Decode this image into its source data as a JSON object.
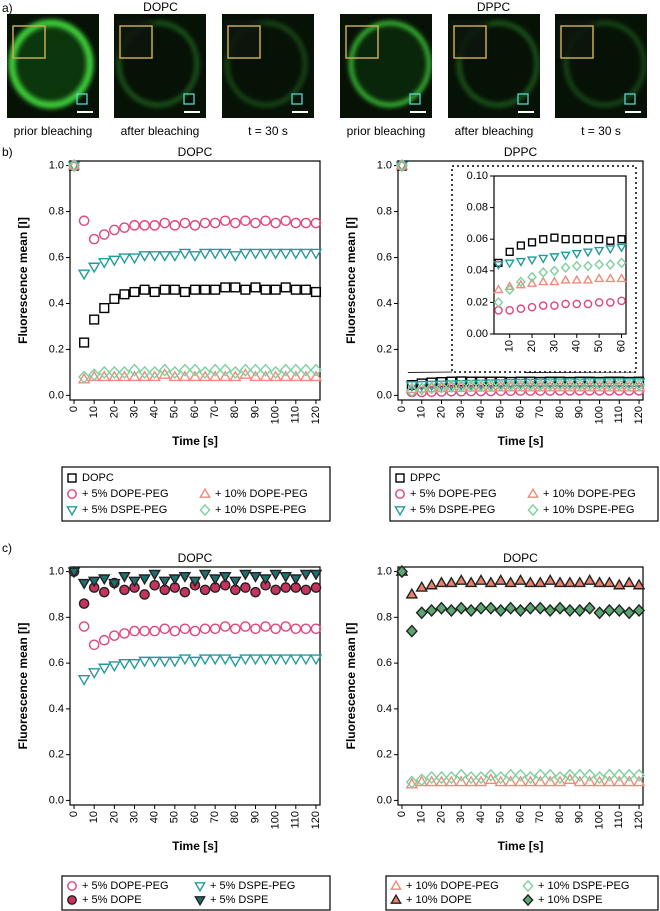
{
  "panel_labels": [
    "a)",
    "b)",
    "c)"
  ],
  "panel_a": [
    {
      "title": "DOPC",
      "captions": [
        "prior bleaching",
        "after bleaching",
        "t = 30 s"
      ]
    },
    {
      "title": "DPPC",
      "captions": [
        "prior bleaching",
        "after bleaching",
        "t = 30 s"
      ]
    }
  ],
  "chart_data": [
    {
      "type": "scatter",
      "title": "DOPC",
      "xlabel": "Time [s]",
      "ylabel": "Fluorescence mean [I]",
      "x": [
        0,
        5,
        10,
        15,
        20,
        25,
        30,
        35,
        40,
        45,
        50,
        55,
        60,
        65,
        70,
        75,
        80,
        85,
        90,
        95,
        100,
        105,
        110,
        115,
        120
      ],
      "xlim": [
        -2,
        122
      ],
      "xticks": [
        0,
        10,
        20,
        30,
        40,
        50,
        60,
        70,
        80,
        90,
        100,
        110,
        120
      ],
      "ylim": [
        -0.02,
        1.02
      ],
      "yticks": [
        {
          "value": 0,
          "label": "0.0"
        },
        0.2,
        0.4,
        0.6,
        0.8,
        {
          "value": 1,
          "label": "1.0"
        }
      ],
      "series": [
        {
          "name": "DOPC",
          "color": "#000000",
          "marker": "square",
          "filled": false,
          "values": [
            1.0,
            0.23,
            0.33,
            0.38,
            0.42,
            0.44,
            0.45,
            0.46,
            0.45,
            0.46,
            0.46,
            0.45,
            0.46,
            0.46,
            0.46,
            0.47,
            0.47,
            0.46,
            0.47,
            0.46,
            0.46,
            0.47,
            0.46,
            0.46,
            0.45
          ]
        },
        {
          "name": "+ 5% DOPE-PEG",
          "color": "#e0457b",
          "marker": "circle",
          "filled": false,
          "values": [
            1.0,
            0.76,
            0.68,
            0.7,
            0.72,
            0.73,
            0.74,
            0.74,
            0.74,
            0.75,
            0.74,
            0.75,
            0.74,
            0.75,
            0.75,
            0.76,
            0.75,
            0.76,
            0.75,
            0.76,
            0.75,
            0.76,
            0.75,
            0.75,
            0.75
          ]
        },
        {
          "name": "+ 5% DSPE-PEG",
          "color": "#239b9b",
          "marker": "triangle-down",
          "filled": false,
          "values": [
            1.0,
            0.53,
            0.56,
            0.58,
            0.59,
            0.6,
            0.6,
            0.61,
            0.61,
            0.61,
            0.61,
            0.62,
            0.61,
            0.62,
            0.62,
            0.62,
            0.61,
            0.62,
            0.62,
            0.62,
            0.62,
            0.62,
            0.62,
            0.62,
            0.62
          ]
        },
        {
          "name": "+ 10% DOPE-PEG",
          "color": "#f08a7a",
          "marker": "triangle-up",
          "filled": false,
          "values": [
            1.0,
            0.07,
            0.08,
            0.08,
            0.08,
            0.08,
            0.08,
            0.08,
            0.08,
            0.09,
            0.08,
            0.08,
            0.08,
            0.08,
            0.08,
            0.08,
            0.08,
            0.09,
            0.08,
            0.08,
            0.08,
            0.08,
            0.08,
            0.08,
            0.08
          ]
        },
        {
          "name": "+ 10% DSPE-PEG",
          "color": "#7fcf9f",
          "marker": "diamond",
          "filled": false,
          "values": [
            1.0,
            0.08,
            0.09,
            0.1,
            0.1,
            0.1,
            0.11,
            0.1,
            0.1,
            0.11,
            0.1,
            0.11,
            0.11,
            0.1,
            0.11,
            0.11,
            0.1,
            0.11,
            0.11,
            0.11,
            0.1,
            0.11,
            0.11,
            0.11,
            0.11
          ]
        }
      ]
    },
    {
      "type": "scatter",
      "title": "DPPC",
      "xlabel": "Time [s]",
      "ylabel": "Fluorescence mean [I]",
      "x": [
        0,
        5,
        10,
        15,
        20,
        25,
        30,
        35,
        40,
        45,
        50,
        55,
        60,
        65,
        70,
        75,
        80,
        85,
        90,
        95,
        100,
        105,
        110,
        115,
        120
      ],
      "xlim": [
        -2,
        122
      ],
      "xticks": [
        0,
        10,
        20,
        30,
        40,
        50,
        60,
        70,
        80,
        90,
        100,
        110,
        120
      ],
      "ylim": [
        -0.02,
        1.02
      ],
      "yticks": [
        {
          "value": 0,
          "label": "0.0"
        },
        0.2,
        0.4,
        0.6,
        0.8,
        {
          "value": 1,
          "label": "1.0"
        }
      ],
      "inset": {
        "xlim": [
          3,
          62
        ],
        "xticks": [
          10,
          20,
          30,
          40,
          50,
          60
        ],
        "ylim": [
          0,
          0.1
        ],
        "yticks": [
          {
            "value": 0,
            "label": "0.00"
          },
          {
            "value": 0.02,
            "label": "0.02"
          },
          {
            "value": 0.04,
            "label": "0.04"
          },
          {
            "value": 0.06,
            "label": "0.06"
          },
          {
            "value": 0.08,
            "label": "0.08"
          },
          {
            "value": 0.1,
            "label": "0.10"
          }
        ]
      },
      "series": [
        {
          "name": "DPPC",
          "color": "#000000",
          "marker": "square",
          "filled": false,
          "values": [
            1.0,
            0.045,
            0.052,
            0.056,
            0.058,
            0.06,
            0.061,
            0.06,
            0.06,
            0.06,
            0.06,
            0.059,
            0.06,
            0.06,
            0.059,
            0.06,
            0.06,
            0.059,
            0.06,
            0.06,
            0.059,
            0.06,
            0.06,
            0.059,
            0.06
          ]
        },
        {
          "name": "+ 5% DOPE-PEG",
          "color": "#e0457b",
          "marker": "circle",
          "filled": false,
          "values": [
            1.0,
            0.015,
            0.015,
            0.016,
            0.017,
            0.018,
            0.018,
            0.019,
            0.019,
            0.019,
            0.02,
            0.02,
            0.021,
            0.021,
            0.021,
            0.021,
            0.022,
            0.022,
            0.022,
            0.022,
            0.022,
            0.022,
            0.022,
            0.022,
            0.022
          ]
        },
        {
          "name": "+ 5% DSPE-PEG",
          "color": "#239b9b",
          "marker": "triangle-down",
          "filled": false,
          "values": [
            1.0,
            0.044,
            0.045,
            0.046,
            0.047,
            0.048,
            0.049,
            0.05,
            0.051,
            0.052,
            0.053,
            0.054,
            0.055,
            0.055,
            0.055,
            0.056,
            0.056,
            0.056,
            0.056,
            0.057,
            0.057,
            0.057,
            0.057,
            0.057,
            0.057
          ]
        },
        {
          "name": "+ 10% DOPE-PEG",
          "color": "#f08a7a",
          "marker": "triangle-up",
          "filled": false,
          "values": [
            1.0,
            0.028,
            0.03,
            0.031,
            0.032,
            0.033,
            0.033,
            0.034,
            0.034,
            0.034,
            0.035,
            0.035,
            0.035,
            0.035,
            0.035,
            0.035,
            0.035,
            0.035,
            0.035,
            0.035,
            0.035,
            0.035,
            0.035,
            0.035,
            0.035
          ]
        },
        {
          "name": "+ 10% DSPE-PEG",
          "color": "#7fcf9f",
          "marker": "diamond",
          "filled": false,
          "values": [
            1.0,
            0.02,
            0.028,
            0.033,
            0.036,
            0.039,
            0.04,
            0.042,
            0.043,
            0.043,
            0.044,
            0.044,
            0.045,
            0.045,
            0.045,
            0.046,
            0.046,
            0.046,
            0.046,
            0.046,
            0.046,
            0.046,
            0.046,
            0.046,
            0.046
          ]
        }
      ]
    },
    {
      "type": "scatter",
      "title": "DOPC",
      "xlabel": "Time [s]",
      "ylabel": "Fluorescence mean [I]",
      "x": [
        0,
        5,
        10,
        15,
        20,
        25,
        30,
        35,
        40,
        45,
        50,
        55,
        60,
        65,
        70,
        75,
        80,
        85,
        90,
        95,
        100,
        105,
        110,
        115,
        120
      ],
      "xlim": [
        -2,
        122
      ],
      "xticks": [
        0,
        10,
        20,
        30,
        40,
        50,
        60,
        70,
        80,
        90,
        100,
        110,
        120
      ],
      "ylim": [
        -0.02,
        1.02
      ],
      "yticks": [
        {
          "value": 0,
          "label": "0.0"
        },
        0.2,
        0.4,
        0.6,
        0.8,
        {
          "value": 1,
          "label": "1.0"
        }
      ],
      "series": [
        {
          "name": "+ 5% DOPE-PEG",
          "color": "#e0457b",
          "marker": "circle",
          "filled": false,
          "values": [
            1.0,
            0.76,
            0.68,
            0.7,
            0.72,
            0.73,
            0.74,
            0.74,
            0.74,
            0.75,
            0.74,
            0.75,
            0.74,
            0.75,
            0.75,
            0.76,
            0.75,
            0.76,
            0.75,
            0.76,
            0.75,
            0.76,
            0.75,
            0.75,
            0.75
          ]
        },
        {
          "name": "+ 5% DOPE",
          "color": "#c8335e",
          "edgecolor": "#222222",
          "marker": "circle",
          "filled": true,
          "values": [
            1.0,
            0.86,
            0.93,
            0.91,
            0.95,
            0.92,
            0.93,
            0.9,
            0.94,
            0.92,
            0.93,
            0.91,
            0.94,
            0.92,
            0.93,
            0.94,
            0.92,
            0.93,
            0.91,
            0.94,
            0.92,
            0.93,
            0.93,
            0.92,
            0.93
          ]
        },
        {
          "name": "+ 5% DSPE-PEG",
          "color": "#239b9b",
          "marker": "triangle-down",
          "filled": false,
          "values": [
            1.0,
            0.53,
            0.56,
            0.58,
            0.59,
            0.6,
            0.6,
            0.61,
            0.61,
            0.61,
            0.61,
            0.62,
            0.61,
            0.62,
            0.62,
            0.62,
            0.61,
            0.62,
            0.62,
            0.62,
            0.62,
            0.62,
            0.62,
            0.62,
            0.62
          ]
        },
        {
          "name": "+ 5% DSPE",
          "color": "#1f6f6f",
          "edgecolor": "#222222",
          "marker": "triangle-down",
          "filled": true,
          "values": [
            1.0,
            0.95,
            0.96,
            0.97,
            0.95,
            0.98,
            0.96,
            0.97,
            0.99,
            0.96,
            0.97,
            0.98,
            0.96,
            0.99,
            0.97,
            0.98,
            0.96,
            0.99,
            0.98,
            0.97,
            0.99,
            0.98,
            0.97,
            0.99,
            0.99
          ]
        }
      ]
    },
    {
      "type": "scatter",
      "title": "DOPC",
      "xlabel": "Time [s]",
      "ylabel": "Fluorescence mean [I]",
      "x": [
        0,
        5,
        10,
        15,
        20,
        25,
        30,
        35,
        40,
        45,
        50,
        55,
        60,
        65,
        70,
        75,
        80,
        85,
        90,
        95,
        100,
        105,
        110,
        115,
        120
      ],
      "xlim": [
        -2,
        122
      ],
      "xticks": [
        0,
        10,
        20,
        30,
        40,
        50,
        60,
        70,
        80,
        90,
        100,
        110,
        120
      ],
      "ylim": [
        -0.02,
        1.02
      ],
      "yticks": [
        {
          "value": 0,
          "label": "0.0"
        },
        0.2,
        0.4,
        0.6,
        0.8,
        {
          "value": 1,
          "label": "1.0"
        }
      ],
      "series": [
        {
          "name": "+ 10% DOPE-PEG",
          "color": "#f08a7a",
          "marker": "triangle-up",
          "filled": false,
          "values": [
            1.0,
            0.07,
            0.08,
            0.08,
            0.08,
            0.08,
            0.08,
            0.08,
            0.08,
            0.09,
            0.08,
            0.08,
            0.08,
            0.08,
            0.08,
            0.08,
            0.08,
            0.09,
            0.08,
            0.08,
            0.08,
            0.08,
            0.08,
            0.08,
            0.08
          ]
        },
        {
          "name": "+ 10% DOPE",
          "color": "#e8806a",
          "edgecolor": "#222222",
          "marker": "triangle-up",
          "filled": true,
          "values": [
            1.0,
            0.9,
            0.93,
            0.94,
            0.95,
            0.95,
            0.96,
            0.95,
            0.96,
            0.95,
            0.96,
            0.95,
            0.96,
            0.95,
            0.95,
            0.96,
            0.95,
            0.95,
            0.95,
            0.96,
            0.95,
            0.95,
            0.94,
            0.95,
            0.94
          ]
        },
        {
          "name": "+ 10% DSPE-PEG",
          "color": "#7fcf9f",
          "marker": "diamond",
          "filled": false,
          "values": [
            1.0,
            0.08,
            0.09,
            0.1,
            0.1,
            0.1,
            0.11,
            0.1,
            0.1,
            0.11,
            0.1,
            0.11,
            0.11,
            0.1,
            0.11,
            0.11,
            0.1,
            0.11,
            0.11,
            0.11,
            0.1,
            0.11,
            0.11,
            0.11,
            0.11
          ]
        },
        {
          "name": "+ 10% DSPE",
          "color": "#5aa870",
          "edgecolor": "#222222",
          "marker": "diamond",
          "filled": true,
          "values": [
            1.0,
            0.74,
            0.82,
            0.83,
            0.84,
            0.83,
            0.84,
            0.83,
            0.84,
            0.84,
            0.83,
            0.84,
            0.83,
            0.84,
            0.84,
            0.83,
            0.84,
            0.83,
            0.83,
            0.84,
            0.82,
            0.83,
            0.83,
            0.82,
            0.83
          ]
        }
      ]
    }
  ]
}
